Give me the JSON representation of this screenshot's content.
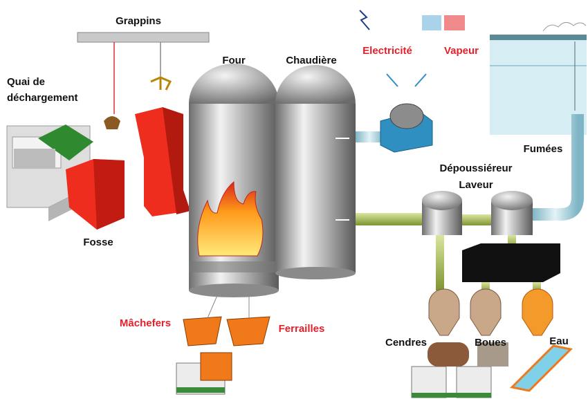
{
  "diagram": {
    "labels": {
      "grappins": "Grappins",
      "quai": [
        "Quai de",
        "déchargement"
      ],
      "four": "Four",
      "chaudiere": "Chaudière",
      "electricite": "Electricité",
      "vapeur": "Vapeur",
      "fumees": "Fumées",
      "depoussiereur": [
        "Dépoussiéreur",
        "Laveur"
      ],
      "fosse": "Fosse",
      "machefers": "Mâchefers",
      "ferrailles": "Ferrailles",
      "cendres": "Cendres",
      "boues": "Boues",
      "eau": "Eau"
    }
  }
}
